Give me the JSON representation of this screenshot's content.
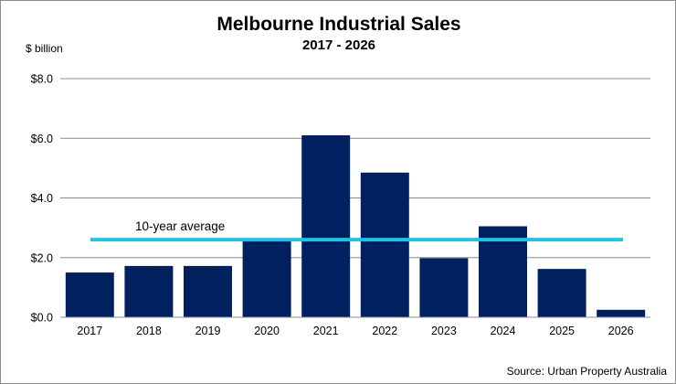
{
  "chart_data": {
    "type": "bar",
    "title": "Melbourne Industrial Sales",
    "subtitle": "2017 - 2026",
    "ylabel": "$ billion",
    "xlabel": "",
    "categories": [
      "2017",
      "2018",
      "2019",
      "2020",
      "2021",
      "2022",
      "2023",
      "2024",
      "2025",
      "2026"
    ],
    "values": [
      1.5,
      1.72,
      1.72,
      2.57,
      6.1,
      4.85,
      1.98,
      3.05,
      1.62,
      0.25
    ],
    "ylim": [
      0,
      8
    ],
    "yticks": [
      0,
      2,
      4,
      6,
      8
    ],
    "ytick_labels": [
      "$0.0",
      "$2.0",
      "$4.0",
      "$6.0",
      "$8.0"
    ],
    "grid": true,
    "bar_color": "#002060",
    "reference_line": {
      "label": "10-year average",
      "value": 2.6,
      "color": "#1fc3e6"
    },
    "source": "Source: Urban Property Australia"
  }
}
